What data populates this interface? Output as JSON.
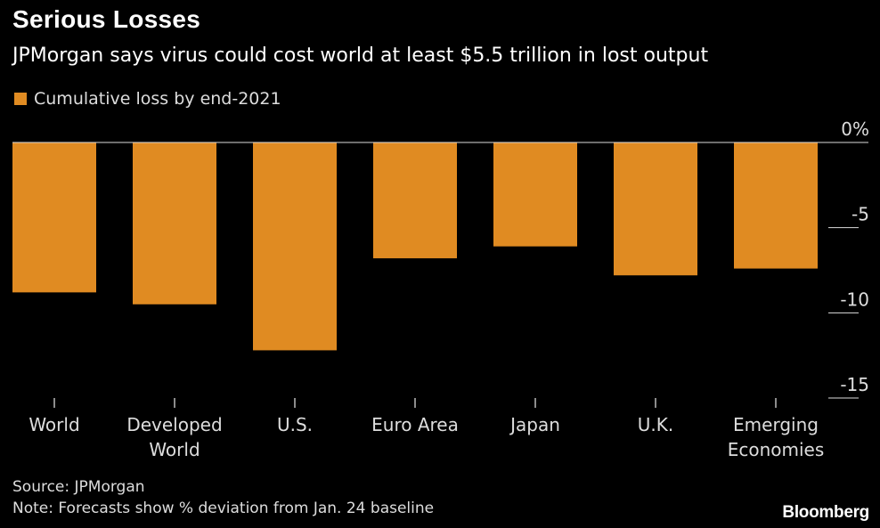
{
  "header": {
    "title": "Serious Losses",
    "subtitle": "JPMorgan says virus could cost world at least $5.5 trillion in lost output"
  },
  "legend": {
    "label": "Cumulative loss by end-2021",
    "color": "#E08B22"
  },
  "footer": {
    "source": "Source: JPMorgan",
    "note": "Note: Forecasts show % deviation from Jan. 24 baseline",
    "logo": "Bloomberg"
  },
  "chart_data": {
    "type": "bar",
    "categories": [
      [
        "World"
      ],
      [
        "Developed",
        "World"
      ],
      [
        "U.S."
      ],
      [
        "Euro Area"
      ],
      [
        "Japan"
      ],
      [
        "U.K."
      ],
      [
        "Emerging",
        "Economies"
      ]
    ],
    "series": [
      {
        "name": "Cumulative loss by end-2021",
        "values": [
          -8.8,
          -9.5,
          -12.2,
          -6.8,
          -6.1,
          -7.8,
          -7.4
        ]
      }
    ],
    "ylim": [
      -15,
      0
    ],
    "yticks": [
      0,
      -5,
      -10,
      -15
    ],
    "ytick_labels": [
      "0%",
      "-5",
      "-10",
      "-15"
    ],
    "y_axis_position": "right",
    "grid": false,
    "bar_color": "#E08B22"
  }
}
